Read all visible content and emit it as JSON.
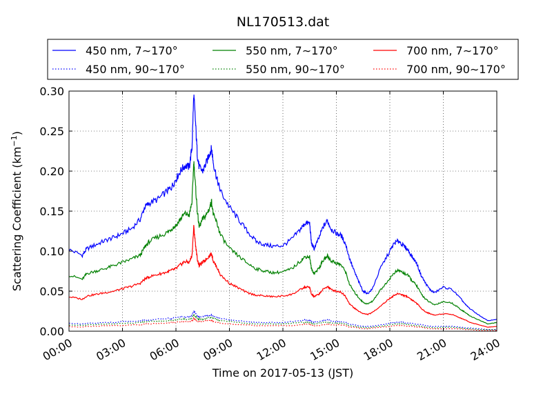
{
  "chart_data": {
    "type": "line",
    "title": "NL170513.dat",
    "xlabel": "Time on 2017-05-13 (JST)",
    "ylabel_main": "Scattering Coefficient (km",
    "ylabel_sup": "−1",
    "ylabel_close": ")",
    "xlim": [
      0,
      24
    ],
    "ylim": [
      0,
      0.3
    ],
    "grid": true,
    "legend_position": "top",
    "x_ticks": [
      {
        "value": 0,
        "label": "00:00"
      },
      {
        "value": 3,
        "label": "03:00"
      },
      {
        "value": 6,
        "label": "06:00"
      },
      {
        "value": 9,
        "label": "09:00"
      },
      {
        "value": 12,
        "label": "12:00"
      },
      {
        "value": 15,
        "label": "15:00"
      },
      {
        "value": 18,
        "label": "18:00"
      },
      {
        "value": 21,
        "label": "21:00"
      },
      {
        "value": 24,
        "label": "24:00"
      }
    ],
    "y_ticks": [
      {
        "value": 0.0,
        "label": "0.00"
      },
      {
        "value": 0.05,
        "label": "0.05"
      },
      {
        "value": 0.1,
        "label": "0.10"
      },
      {
        "value": 0.15,
        "label": "0.15"
      },
      {
        "value": 0.2,
        "label": "0.20"
      },
      {
        "value": 0.25,
        "label": "0.25"
      },
      {
        "value": 0.3,
        "label": "0.30"
      }
    ],
    "x": [
      0,
      0.75,
      1,
      1.5,
      2,
      2.5,
      3,
      3.5,
      4,
      4.25,
      4.5,
      5,
      5.5,
      5.75,
      6,
      6.25,
      6.5,
      6.75,
      6.9,
      7.0,
      7.1,
      7.2,
      7.3,
      7.5,
      7.7,
      7.9,
      8.0,
      8.1,
      8.3,
      8.5,
      9,
      9.5,
      10,
      10.5,
      11,
      11.5,
      12,
      12.5,
      13,
      13.25,
      13.5,
      13.6,
      13.75,
      14,
      14.25,
      14.5,
      14.7,
      15,
      15.25,
      15.5,
      15.75,
      16,
      16.25,
      16.5,
      16.75,
      17,
      17.5,
      18,
      18.25,
      18.5,
      18.75,
      19,
      19.25,
      19.5,
      19.75,
      20,
      20.25,
      20.5,
      21,
      21.5,
      22,
      22.25,
      22.5,
      23,
      23.5,
      24
    ],
    "series": [
      {
        "name": "450 nm, 7∼170°",
        "color": "#0000ff",
        "dash": "solid",
        "values": [
          0.102,
          0.095,
          0.103,
          0.108,
          0.113,
          0.117,
          0.122,
          0.128,
          0.14,
          0.155,
          0.16,
          0.165,
          0.175,
          0.18,
          0.19,
          0.2,
          0.207,
          0.205,
          0.23,
          0.295,
          0.26,
          0.22,
          0.205,
          0.2,
          0.21,
          0.223,
          0.228,
          0.21,
          0.19,
          0.175,
          0.155,
          0.14,
          0.125,
          0.112,
          0.108,
          0.106,
          0.107,
          0.115,
          0.128,
          0.135,
          0.135,
          0.11,
          0.103,
          0.115,
          0.13,
          0.138,
          0.128,
          0.122,
          0.12,
          0.11,
          0.09,
          0.075,
          0.062,
          0.05,
          0.047,
          0.052,
          0.08,
          0.1,
          0.11,
          0.113,
          0.107,
          0.102,
          0.093,
          0.085,
          0.07,
          0.06,
          0.052,
          0.048,
          0.055,
          0.052,
          0.04,
          0.033,
          0.028,
          0.02,
          0.013,
          0.015
        ]
      },
      {
        "name": "550 nm, 7∼170°",
        "color": "#008000",
        "dash": "solid",
        "values": [
          0.07,
          0.065,
          0.072,
          0.075,
          0.078,
          0.082,
          0.086,
          0.09,
          0.095,
          0.105,
          0.112,
          0.118,
          0.123,
          0.128,
          0.132,
          0.14,
          0.147,
          0.145,
          0.162,
          0.212,
          0.18,
          0.15,
          0.13,
          0.14,
          0.145,
          0.155,
          0.162,
          0.145,
          0.135,
          0.12,
          0.103,
          0.094,
          0.085,
          0.078,
          0.075,
          0.073,
          0.074,
          0.078,
          0.088,
          0.093,
          0.093,
          0.078,
          0.072,
          0.078,
          0.088,
          0.094,
          0.088,
          0.085,
          0.083,
          0.075,
          0.058,
          0.049,
          0.042,
          0.036,
          0.034,
          0.037,
          0.052,
          0.066,
          0.073,
          0.076,
          0.073,
          0.07,
          0.063,
          0.057,
          0.047,
          0.04,
          0.036,
          0.033,
          0.037,
          0.035,
          0.027,
          0.023,
          0.019,
          0.014,
          0.009,
          0.011
        ]
      },
      {
        "name": "700 nm, 7∼170°",
        "color": "#ff0000",
        "dash": "solid",
        "values": [
          0.043,
          0.04,
          0.044,
          0.046,
          0.048,
          0.05,
          0.053,
          0.056,
          0.06,
          0.065,
          0.068,
          0.071,
          0.074,
          0.076,
          0.078,
          0.083,
          0.087,
          0.086,
          0.095,
          0.13,
          0.108,
          0.09,
          0.082,
          0.086,
          0.09,
          0.095,
          0.097,
          0.087,
          0.08,
          0.07,
          0.06,
          0.054,
          0.048,
          0.045,
          0.044,
          0.043,
          0.044,
          0.046,
          0.052,
          0.055,
          0.055,
          0.046,
          0.043,
          0.046,
          0.052,
          0.056,
          0.052,
          0.05,
          0.049,
          0.044,
          0.034,
          0.029,
          0.025,
          0.022,
          0.021,
          0.023,
          0.032,
          0.041,
          0.045,
          0.047,
          0.045,
          0.043,
          0.039,
          0.035,
          0.029,
          0.024,
          0.022,
          0.02,
          0.022,
          0.021,
          0.016,
          0.014,
          0.011,
          0.008,
          0.005,
          0.006
        ]
      },
      {
        "name": "450 nm, 90∼170°",
        "color": "#0000ff",
        "dash": "dotted",
        "values": [
          0.01,
          0.009,
          0.01,
          0.01,
          0.011,
          0.011,
          0.012,
          0.012,
          0.013,
          0.014,
          0.014,
          0.015,
          0.016,
          0.016,
          0.017,
          0.018,
          0.018,
          0.018,
          0.02,
          0.025,
          0.022,
          0.019,
          0.018,
          0.018,
          0.019,
          0.02,
          0.02,
          0.019,
          0.017,
          0.016,
          0.014,
          0.013,
          0.012,
          0.011,
          0.011,
          0.011,
          0.011,
          0.012,
          0.013,
          0.014,
          0.014,
          0.012,
          0.011,
          0.012,
          0.013,
          0.014,
          0.013,
          0.012,
          0.012,
          0.011,
          0.009,
          0.008,
          0.007,
          0.006,
          0.006,
          0.006,
          0.008,
          0.01,
          0.011,
          0.011,
          0.011,
          0.01,
          0.01,
          0.009,
          0.008,
          0.007,
          0.006,
          0.006,
          0.006,
          0.006,
          0.005,
          0.004,
          0.004,
          0.003,
          0.002,
          0.002
        ]
      },
      {
        "name": "550 nm, 90∼170°",
        "color": "#008000",
        "dash": "dotted",
        "values": [
          0.008,
          0.007,
          0.008,
          0.008,
          0.009,
          0.009,
          0.01,
          0.01,
          0.011,
          0.012,
          0.012,
          0.013,
          0.013,
          0.014,
          0.014,
          0.015,
          0.015,
          0.015,
          0.017,
          0.021,
          0.018,
          0.016,
          0.015,
          0.015,
          0.016,
          0.017,
          0.017,
          0.016,
          0.015,
          0.013,
          0.012,
          0.011,
          0.01,
          0.009,
          0.009,
          0.009,
          0.009,
          0.01,
          0.011,
          0.011,
          0.011,
          0.01,
          0.009,
          0.01,
          0.011,
          0.011,
          0.01,
          0.01,
          0.01,
          0.009,
          0.007,
          0.006,
          0.005,
          0.005,
          0.004,
          0.005,
          0.006,
          0.008,
          0.009,
          0.009,
          0.009,
          0.008,
          0.008,
          0.007,
          0.006,
          0.005,
          0.005,
          0.004,
          0.005,
          0.005,
          0.004,
          0.003,
          0.003,
          0.002,
          0.002,
          0.002
        ]
      },
      {
        "name": "700 nm, 90∼170°",
        "color": "#ff0000",
        "dash": "dotted",
        "values": [
          0.006,
          0.005,
          0.006,
          0.006,
          0.007,
          0.007,
          0.007,
          0.008,
          0.008,
          0.009,
          0.009,
          0.01,
          0.01,
          0.011,
          0.011,
          0.012,
          0.012,
          0.012,
          0.013,
          0.016,
          0.014,
          0.012,
          0.012,
          0.012,
          0.013,
          0.013,
          0.013,
          0.012,
          0.011,
          0.01,
          0.009,
          0.008,
          0.008,
          0.007,
          0.007,
          0.007,
          0.007,
          0.007,
          0.008,
          0.009,
          0.009,
          0.007,
          0.007,
          0.007,
          0.008,
          0.009,
          0.008,
          0.008,
          0.008,
          0.007,
          0.005,
          0.005,
          0.004,
          0.003,
          0.003,
          0.004,
          0.005,
          0.006,
          0.007,
          0.007,
          0.007,
          0.006,
          0.006,
          0.005,
          0.005,
          0.004,
          0.003,
          0.003,
          0.003,
          0.003,
          0.003,
          0.002,
          0.002,
          0.001,
          0.001,
          0.001
        ]
      }
    ]
  }
}
